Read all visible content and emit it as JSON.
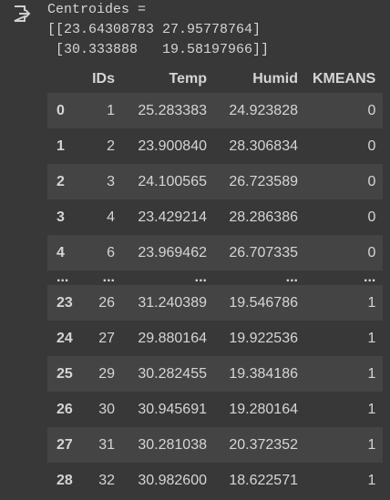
{
  "output": {
    "lines": [
      "Centroides =",
      "[[23.64308783 27.95778764]",
      " [30.333888   19.58197966]]"
    ]
  },
  "table": {
    "columns": [
      "",
      "IDs",
      "Temp",
      "Humid",
      "KMEANS"
    ],
    "rows": [
      [
        "0",
        "1",
        "25.283383",
        "24.923828",
        "0"
      ],
      [
        "1",
        "2",
        "23.900840",
        "28.306834",
        "0"
      ],
      [
        "2",
        "3",
        "24.100565",
        "26.723589",
        "0"
      ],
      [
        "3",
        "4",
        "23.429214",
        "28.286386",
        "0"
      ],
      [
        "4",
        "6",
        "23.969462",
        "26.707335",
        "0"
      ],
      [
        "...",
        "...",
        "...",
        "...",
        "..."
      ],
      [
        "23",
        "26",
        "31.240389",
        "19.546786",
        "1"
      ],
      [
        "24",
        "27",
        "29.880164",
        "19.922536",
        "1"
      ],
      [
        "25",
        "29",
        "30.282455",
        "19.384186",
        "1"
      ],
      [
        "26",
        "30",
        "30.945691",
        "19.280164",
        "1"
      ],
      [
        "27",
        "31",
        "30.281038",
        "20.372352",
        "1"
      ],
      [
        "28",
        "32",
        "30.982600",
        "18.622571",
        "1"
      ]
    ]
  }
}
